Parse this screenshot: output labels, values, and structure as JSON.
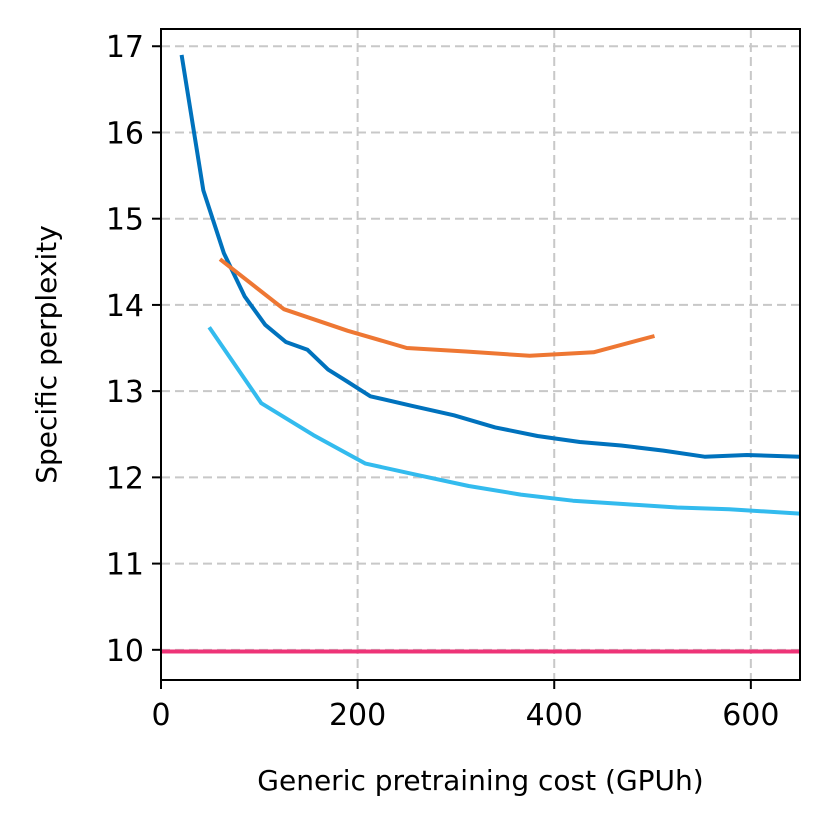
{
  "chart_data": {
    "type": "line",
    "title": "",
    "xlabel": "Generic pretraining cost (GPUh)",
    "ylabel": "Specific perplexity",
    "xlim": [
      0,
      650
    ],
    "ylim": [
      9.65,
      17.2
    ],
    "xticks": [
      0,
      200,
      400,
      600
    ],
    "xtick_labels": [
      "0",
      "200",
      "400",
      "600"
    ],
    "yticks": [
      10,
      11,
      12,
      13,
      14,
      15,
      16,
      17
    ],
    "ytick_labels": [
      "10",
      "11",
      "12",
      "13",
      "14",
      "15",
      "16",
      "17"
    ],
    "grid": true,
    "legend": "none",
    "series": [
      {
        "name": "series-dark-blue",
        "color": "#0072bd",
        "x": [
          21,
          43,
          64,
          85,
          106,
          127,
          149,
          170,
          191,
          213,
          255,
          298,
          340,
          383,
          426,
          468,
          511,
          553,
          596,
          650
        ],
        "y": [
          16.9,
          15.33,
          14.6,
          14.1,
          13.77,
          13.57,
          13.48,
          13.25,
          13.1,
          12.94,
          12.83,
          12.72,
          12.58,
          12.48,
          12.41,
          12.37,
          12.31,
          12.24,
          12.26,
          12.24
        ]
      },
      {
        "name": "series-orange",
        "color": "#ee7733",
        "x": [
          60,
          125,
          190,
          250,
          310,
          375,
          440,
          502
        ],
        "y": [
          14.53,
          13.95,
          13.7,
          13.5,
          13.46,
          13.41,
          13.45,
          13.64
        ]
      },
      {
        "name": "series-light-blue",
        "color": "#33bbee",
        "x": [
          49,
          102,
          155,
          208,
          260,
          313,
          366,
          419,
          472,
          525,
          578,
          650
        ],
        "y": [
          13.74,
          12.86,
          12.49,
          12.16,
          12.03,
          11.9,
          11.8,
          11.73,
          11.69,
          11.65,
          11.63,
          11.58
        ]
      },
      {
        "name": "series-pink-baseline",
        "color": "#ee3377",
        "x": [
          0,
          650
        ],
        "y": [
          9.98,
          9.98
        ]
      }
    ]
  }
}
